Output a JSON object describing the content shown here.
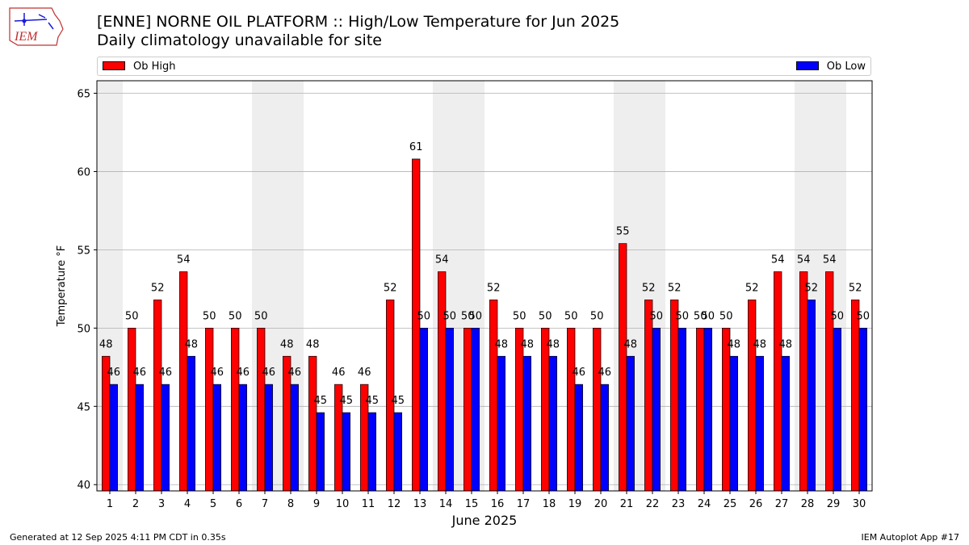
{
  "header": {
    "logo_text": "IEM",
    "title": "[ENNE] NORNE OIL PLATFORM :: High/Low Temperature for Jun 2025",
    "subtitle": "Daily climatology unavailable for site"
  },
  "legend": {
    "high_label": "Ob High",
    "low_label": "Ob Low",
    "placement": "top"
  },
  "footer": {
    "generated": "Generated at 12 Sep 2025 4:11 PM CDT in 0.35s",
    "app": "IEM Autoplot App #17"
  },
  "colors": {
    "high": "#ff0000",
    "low": "#0000ff",
    "weekend_shade": "#eeeeee",
    "grid": "#b0b0b0"
  },
  "chart_data": {
    "type": "bar",
    "xlabel": "June 2025",
    "ylabel": "Temperature °F",
    "ylim": [
      39.6,
      65.8
    ],
    "yticks": [
      40,
      45,
      50,
      55,
      60,
      65
    ],
    "grid": "horizontal",
    "categories": [
      "1",
      "2",
      "3",
      "4",
      "5",
      "6",
      "7",
      "8",
      "9",
      "10",
      "11",
      "12",
      "13",
      "14",
      "15",
      "16",
      "17",
      "18",
      "19",
      "20",
      "21",
      "22",
      "23",
      "24",
      "25",
      "26",
      "27",
      "28",
      "29",
      "30"
    ],
    "shaded_days": [
      1,
      7,
      8,
      14,
      15,
      21,
      22,
      28,
      29
    ],
    "series": [
      {
        "name": "Ob High",
        "values": [
          48.2,
          50.0,
          51.8,
          53.6,
          50.0,
          50.0,
          50.0,
          48.2,
          48.2,
          46.4,
          46.4,
          51.8,
          60.8,
          53.6,
          50.0,
          51.8,
          50.0,
          50.0,
          50.0,
          50.0,
          55.4,
          51.8,
          51.8,
          50.0,
          50.0,
          51.8,
          53.6,
          53.6,
          53.6,
          51.8
        ],
        "labels": [
          "48",
          "50",
          "52",
          "54",
          "50",
          "50",
          "50",
          "48",
          "48",
          "46",
          "46",
          "52",
          "61",
          "54",
          "50",
          "52",
          "50",
          "50",
          "50",
          "50",
          "55",
          "52",
          "52",
          "50",
          "50",
          "52",
          "54",
          "54",
          "54",
          "52"
        ]
      },
      {
        "name": "Ob Low",
        "values": [
          46.4,
          46.4,
          46.4,
          48.2,
          46.4,
          46.4,
          46.4,
          46.4,
          44.6,
          44.6,
          44.6,
          44.6,
          50.0,
          50.0,
          50.0,
          48.2,
          48.2,
          48.2,
          46.4,
          46.4,
          48.2,
          50.0,
          50.0,
          50.0,
          48.2,
          48.2,
          48.2,
          51.8,
          50.0,
          50.0
        ],
        "labels": [
          "46",
          "46",
          "46",
          "48",
          "46",
          "46",
          "46",
          "46",
          "45",
          "45",
          "45",
          "45",
          "50",
          "50",
          "50",
          "48",
          "48",
          "48",
          "46",
          "46",
          "48",
          "50",
          "50",
          "50",
          "48",
          "48",
          "48",
          "52",
          "50",
          "50"
        ]
      }
    ]
  }
}
